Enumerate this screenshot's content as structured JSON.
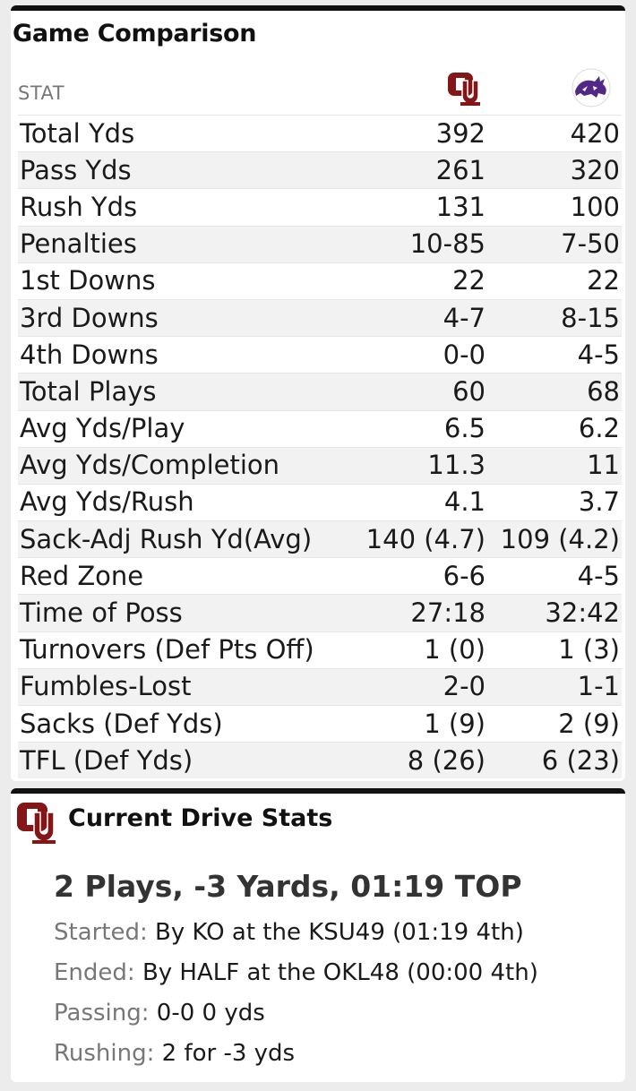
{
  "comparison": {
    "title": "Game Comparison",
    "stat_header": "STAT",
    "teams": [
      {
        "name_icon": "oklahoma-logo-icon",
        "color": "#841617"
      },
      {
        "name_icon": "kansas-state-logo-icon",
        "color": "#512888"
      }
    ],
    "rows": [
      {
        "label": "Total Yds",
        "ou": "392",
        "ksu": "420"
      },
      {
        "label": "Pass Yds",
        "ou": "261",
        "ksu": "320"
      },
      {
        "label": "Rush Yds",
        "ou": "131",
        "ksu": "100"
      },
      {
        "label": "Penalties",
        "ou": "10-85",
        "ksu": "7-50"
      },
      {
        "label": "1st Downs",
        "ou": "22",
        "ksu": "22"
      },
      {
        "label": "3rd Downs",
        "ou": "4-7",
        "ksu": "8-15"
      },
      {
        "label": "4th Downs",
        "ou": "0-0",
        "ksu": "4-5"
      },
      {
        "label": "Total Plays",
        "ou": "60",
        "ksu": "68"
      },
      {
        "label": "Avg Yds/Play",
        "ou": "6.5",
        "ksu": "6.2"
      },
      {
        "label": "Avg Yds/Completion",
        "ou": "11.3",
        "ksu": "11"
      },
      {
        "label": "Avg Yds/Rush",
        "ou": "4.1",
        "ksu": "3.7"
      },
      {
        "label": "Sack-Adj Rush Yd(Avg)",
        "ou": "140 (4.7)",
        "ksu": "109 (4.2)"
      },
      {
        "label": "Red Zone",
        "ou": "6-6",
        "ksu": "4-5"
      },
      {
        "label": "Time of Poss",
        "ou": "27:18",
        "ksu": "32:42"
      },
      {
        "label": "Turnovers (Def Pts Off)",
        "ou": "1 (0)",
        "ksu": "1 (3)"
      },
      {
        "label": "Fumbles-Lost",
        "ou": "2-0",
        "ksu": "1-1"
      },
      {
        "label": "Sacks (Def Yds)",
        "ou": "1 (9)",
        "ksu": "2 (9)"
      },
      {
        "label": "TFL (Def Yds)",
        "ou": "8 (26)",
        "ksu": "6 (23)"
      }
    ]
  },
  "drive": {
    "title": "Current Drive Stats",
    "summary": "2 Plays, -3 Yards, 01:19 TOP",
    "started_label": "Started:",
    "started_value": "By KO at the KSU49 (01:19 4th)",
    "ended_label": "Ended:",
    "ended_value": "By HALF at the OKL48 (00:00 4th)",
    "passing_label": "Passing:",
    "passing_value": "0-0 0 yds",
    "rushing_label": "Rushing:",
    "rushing_value": "2 for -3 yds"
  }
}
